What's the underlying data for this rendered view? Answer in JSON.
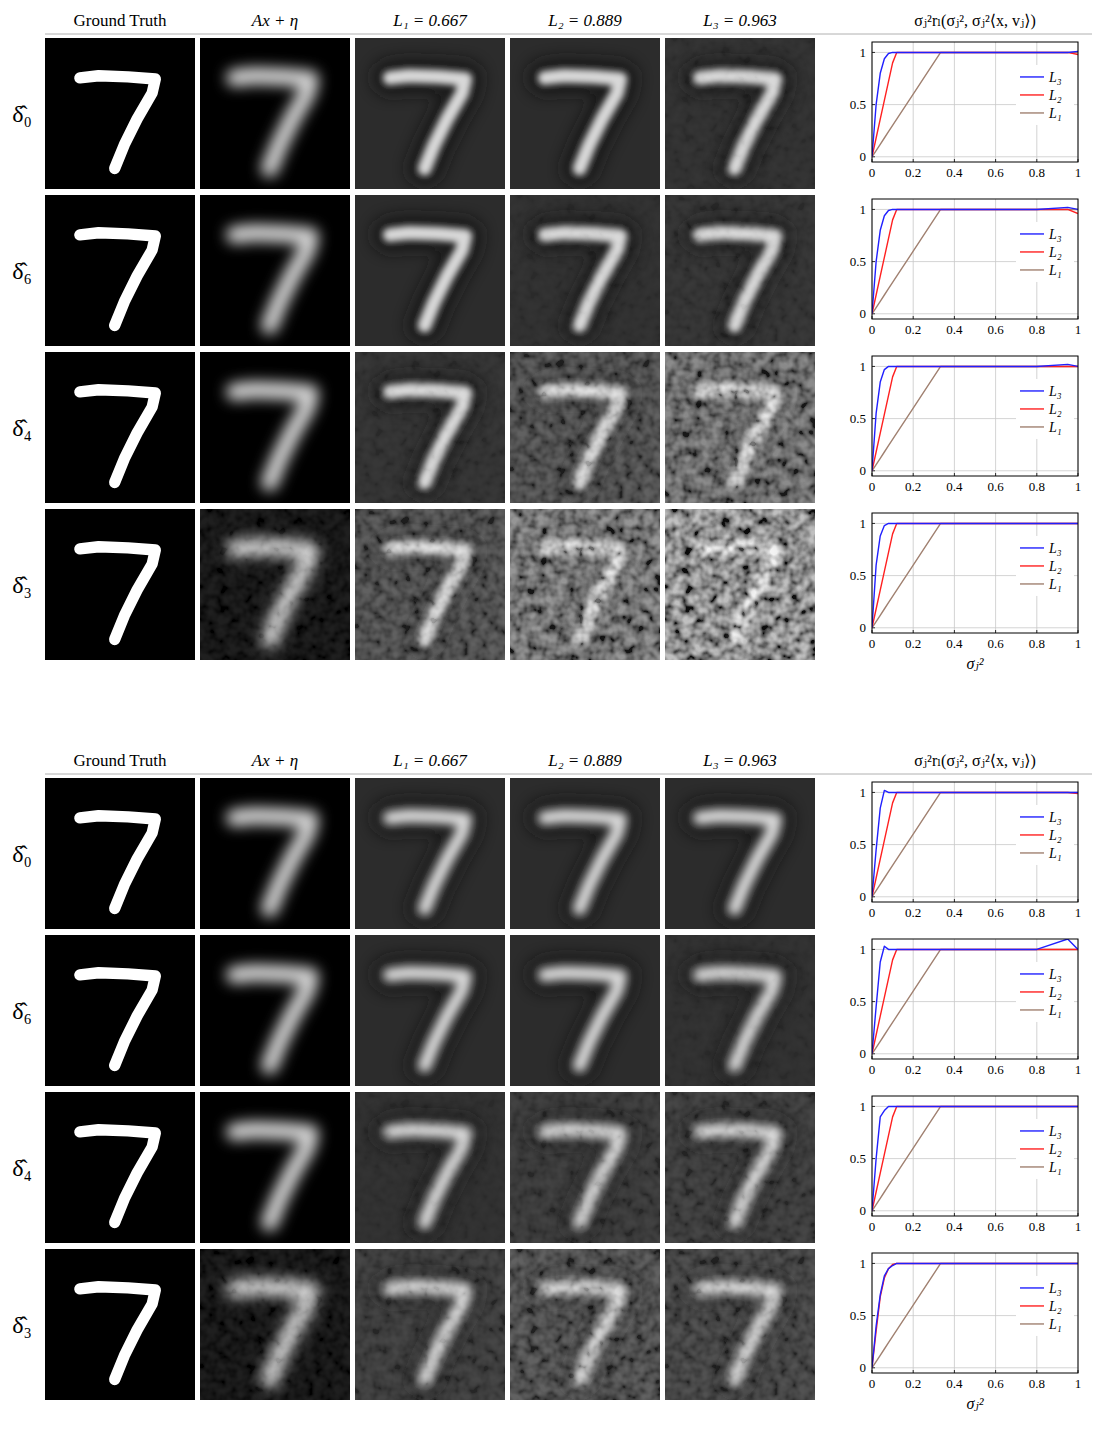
{
  "figure": {
    "panels": [
      {
        "column_heads": [
          "Ground Truth",
          "Ax + η",
          "L₁ = 0.667",
          "L₂ = 0.889",
          "L₃ = 0.963"
        ],
        "plot_title": "σⱼ²rₗ(σⱼ², σⱼ²⟨x, vⱼ⟩)",
        "row_labels": [
          "δ̂₀",
          "δ̂₆",
          "δ̂₄",
          "δ̂₃"
        ],
        "x_label": "σⱼ²"
      },
      {
        "column_heads": [
          "Ground Truth",
          "Ax + η",
          "L₁ = 0.667",
          "L₂ = 0.889",
          "L₃ = 0.963"
        ],
        "plot_title": "σⱼ²rₗ(σⱼ², σⱼ²⟨x, vⱼ⟩)",
        "row_labels": [
          "δ̂₀",
          "δ̂₆",
          "δ̂₄",
          "δ̂₃"
        ],
        "x_label": "σⱼ²"
      }
    ]
  },
  "chart_data": [
    {
      "type": "line",
      "x": [
        0,
        0.02,
        0.04,
        0.06,
        0.08,
        0.1,
        0.12,
        0.2,
        0.333,
        0.4,
        0.6,
        0.8,
        0.95,
        1
      ],
      "series": [
        {
          "name": "L₃",
          "color": "#2020ff",
          "values": [
            0,
            0.5,
            0.8,
            0.94,
            0.99,
            1,
            1,
            1,
            1,
            1,
            1,
            1,
            1,
            1.01
          ]
        },
        {
          "name": "L₂",
          "color": "#ff2020",
          "values": [
            0,
            0.18,
            0.36,
            0.54,
            0.72,
            0.9,
            1,
            1,
            1,
            1,
            1,
            1,
            1,
            0.98
          ]
        },
        {
          "name": "L₁",
          "color": "#a08070",
          "values": [
            0,
            0.06,
            0.12,
            0.18,
            0.24,
            0.3,
            0.36,
            0.6,
            1,
            1,
            1,
            1,
            1,
            1
          ]
        }
      ],
      "xlim": [
        0,
        1
      ],
      "ylim": [
        -0.05,
        1.1
      ],
      "xticks": [
        0,
        0.2,
        0.4,
        0.6,
        0.8,
        1
      ],
      "yticks": [
        0,
        0.5,
        1
      ],
      "grid": true,
      "legend": "center right"
    },
    {
      "type": "line",
      "x": [
        0,
        0.02,
        0.04,
        0.06,
        0.08,
        0.1,
        0.12,
        0.2,
        0.333,
        0.4,
        0.6,
        0.8,
        0.95,
        1
      ],
      "series": [
        {
          "name": "L₃",
          "color": "#2020ff",
          "values": [
            0,
            0.5,
            0.8,
            0.94,
            0.99,
            1,
            1,
            1,
            1,
            1,
            1,
            1,
            1.02,
            1
          ]
        },
        {
          "name": "L₂",
          "color": "#ff2020",
          "values": [
            0,
            0.18,
            0.36,
            0.54,
            0.72,
            0.9,
            1,
            1,
            1,
            1,
            1,
            1,
            1,
            0.96
          ]
        },
        {
          "name": "L₁",
          "color": "#a08070",
          "values": [
            0,
            0.06,
            0.12,
            0.18,
            0.24,
            0.3,
            0.36,
            0.6,
            1,
            1,
            1,
            1,
            1,
            1
          ]
        }
      ],
      "xlim": [
        0,
        1
      ],
      "ylim": [
        -0.05,
        1.1
      ],
      "xticks": [
        0,
        0.2,
        0.4,
        0.6,
        0.8,
        1
      ],
      "yticks": [
        0,
        0.5,
        1
      ],
      "grid": true,
      "legend": "center right"
    },
    {
      "type": "line",
      "x": [
        0,
        0.02,
        0.04,
        0.06,
        0.08,
        0.1,
        0.12,
        0.2,
        0.333,
        0.4,
        0.6,
        0.8,
        0.95,
        1
      ],
      "series": [
        {
          "name": "L₃",
          "color": "#2020ff",
          "values": [
            0,
            0.55,
            0.85,
            0.97,
            1,
            1,
            1,
            1,
            1,
            1,
            1,
            1,
            1.02,
            1
          ]
        },
        {
          "name": "L₂",
          "color": "#ff2020",
          "values": [
            0,
            0.18,
            0.36,
            0.54,
            0.72,
            0.9,
            1,
            1,
            1,
            1,
            1,
            1,
            1,
            1
          ]
        },
        {
          "name": "L₁",
          "color": "#a08070",
          "values": [
            0,
            0.06,
            0.12,
            0.18,
            0.24,
            0.3,
            0.36,
            0.6,
            1,
            1,
            1,
            1,
            1,
            1
          ]
        }
      ],
      "xlim": [
        0,
        1
      ],
      "ylim": [
        -0.05,
        1.1
      ],
      "xticks": [
        0,
        0.2,
        0.4,
        0.6,
        0.8,
        1
      ],
      "yticks": [
        0,
        0.5,
        1
      ],
      "grid": true,
      "legend": "center right"
    },
    {
      "type": "line",
      "x": [
        0,
        0.02,
        0.04,
        0.06,
        0.08,
        0.1,
        0.12,
        0.2,
        0.333,
        0.4,
        0.6,
        0.8,
        0.95,
        1
      ],
      "series": [
        {
          "name": "L₃",
          "color": "#2020ff",
          "values": [
            0,
            0.6,
            0.88,
            0.98,
            1,
            1,
            1,
            1,
            1,
            1,
            1,
            1,
            1,
            1
          ]
        },
        {
          "name": "L₂",
          "color": "#ff2020",
          "values": [
            0,
            0.18,
            0.36,
            0.54,
            0.72,
            0.9,
            1,
            1,
            1,
            1,
            1,
            1,
            1,
            1
          ]
        },
        {
          "name": "L₁",
          "color": "#a08070",
          "values": [
            0,
            0.06,
            0.12,
            0.18,
            0.24,
            0.3,
            0.36,
            0.6,
            1,
            1,
            1,
            1,
            1,
            1
          ]
        }
      ],
      "xlim": [
        0,
        1
      ],
      "ylim": [
        -0.05,
        1.1
      ],
      "xticks": [
        0,
        0.2,
        0.4,
        0.6,
        0.8,
        1
      ],
      "yticks": [
        0,
        0.5,
        1
      ],
      "grid": true,
      "legend": "center right"
    },
    {
      "type": "line",
      "x": [
        0,
        0.02,
        0.04,
        0.06,
        0.08,
        0.1,
        0.12,
        0.2,
        0.333,
        0.4,
        0.6,
        0.8,
        0.95,
        1
      ],
      "series": [
        {
          "name": "L₃",
          "color": "#2020ff",
          "values": [
            0,
            0.45,
            0.85,
            1.02,
            1,
            1,
            1,
            1,
            1,
            1,
            1,
            1,
            1,
            1
          ]
        },
        {
          "name": "L₂",
          "color": "#ff2020",
          "values": [
            0,
            0.18,
            0.36,
            0.54,
            0.72,
            0.9,
            1,
            1,
            1,
            1,
            1,
            1,
            1,
            0.99
          ]
        },
        {
          "name": "L₁",
          "color": "#a08070",
          "values": [
            0,
            0.06,
            0.12,
            0.18,
            0.24,
            0.3,
            0.36,
            0.6,
            1,
            1,
            1,
            1,
            1,
            1
          ]
        }
      ],
      "xlim": [
        0,
        1
      ],
      "ylim": [
        -0.05,
        1.1
      ],
      "xticks": [
        0,
        0.2,
        0.4,
        0.6,
        0.8,
        1
      ],
      "yticks": [
        0,
        0.5,
        1
      ],
      "grid": true,
      "legend": "center right"
    },
    {
      "type": "line",
      "x": [
        0,
        0.02,
        0.04,
        0.06,
        0.08,
        0.1,
        0.12,
        0.2,
        0.333,
        0.4,
        0.6,
        0.8,
        0.95,
        1
      ],
      "series": [
        {
          "name": "L₃",
          "color": "#2020ff",
          "values": [
            0,
            0.45,
            0.88,
            1.03,
            1,
            1,
            1,
            1,
            1,
            1,
            1,
            1,
            1.1,
            1
          ]
        },
        {
          "name": "L₂",
          "color": "#ff2020",
          "values": [
            0,
            0.18,
            0.36,
            0.54,
            0.72,
            0.9,
            1,
            1,
            1,
            1,
            1,
            1,
            1,
            1
          ]
        },
        {
          "name": "L₁",
          "color": "#a08070",
          "values": [
            0,
            0.06,
            0.12,
            0.18,
            0.24,
            0.3,
            0.36,
            0.6,
            1,
            1,
            1,
            1,
            1,
            1
          ]
        }
      ],
      "xlim": [
        0,
        1
      ],
      "ylim": [
        -0.05,
        1.1
      ],
      "xticks": [
        0,
        0.2,
        0.4,
        0.6,
        0.8,
        1
      ],
      "yticks": [
        0,
        0.5,
        1
      ],
      "grid": true,
      "legend": "center right"
    },
    {
      "type": "line",
      "x": [
        0,
        0.02,
        0.04,
        0.06,
        0.08,
        0.1,
        0.12,
        0.2,
        0.333,
        0.4,
        0.6,
        0.8,
        0.95,
        1
      ],
      "series": [
        {
          "name": "L₃",
          "color": "#2020ff",
          "values": [
            0,
            0.5,
            0.9,
            0.96,
            1,
            1,
            1,
            1,
            1,
            1,
            1,
            1,
            1,
            1
          ]
        },
        {
          "name": "L₂",
          "color": "#ff2020",
          "values": [
            0,
            0.18,
            0.36,
            0.54,
            0.72,
            0.9,
            1,
            1,
            1,
            1,
            1,
            1,
            1,
            1
          ]
        },
        {
          "name": "L₁",
          "color": "#a08070",
          "values": [
            0,
            0.06,
            0.12,
            0.18,
            0.24,
            0.3,
            0.36,
            0.6,
            1,
            1,
            1,
            1,
            1,
            1
          ]
        }
      ],
      "xlim": [
        0,
        1
      ],
      "ylim": [
        -0.05,
        1.1
      ],
      "xticks": [
        0,
        0.2,
        0.4,
        0.6,
        0.8,
        1
      ],
      "yticks": [
        0,
        0.5,
        1
      ],
      "grid": true,
      "legend": "center right"
    },
    {
      "type": "line",
      "x": [
        0,
        0.02,
        0.04,
        0.06,
        0.08,
        0.1,
        0.12,
        0.2,
        0.333,
        0.4,
        0.6,
        0.8,
        0.95,
        1
      ],
      "series": [
        {
          "name": "L₃",
          "color": "#2020ff",
          "values": [
            0,
            0.4,
            0.7,
            0.88,
            0.95,
            0.98,
            1,
            1,
            1,
            1,
            1,
            1,
            1,
            1
          ]
        },
        {
          "name": "L₂",
          "color": "#ff2020",
          "values": [
            0,
            0.35,
            0.68,
            0.86,
            0.95,
            0.99,
            1,
            1,
            1,
            1,
            1,
            1,
            1,
            1
          ]
        },
        {
          "name": "L₁",
          "color": "#a08070",
          "values": [
            0,
            0.06,
            0.12,
            0.18,
            0.24,
            0.3,
            0.36,
            0.6,
            1,
            1,
            1,
            1,
            1,
            1
          ]
        }
      ],
      "xlim": [
        0,
        1
      ],
      "ylim": [
        -0.05,
        1.1
      ],
      "xticks": [
        0,
        0.2,
        0.4,
        0.6,
        0.8,
        1
      ],
      "yticks": [
        0,
        0.5,
        1
      ],
      "grid": true,
      "legend": "center right"
    }
  ]
}
